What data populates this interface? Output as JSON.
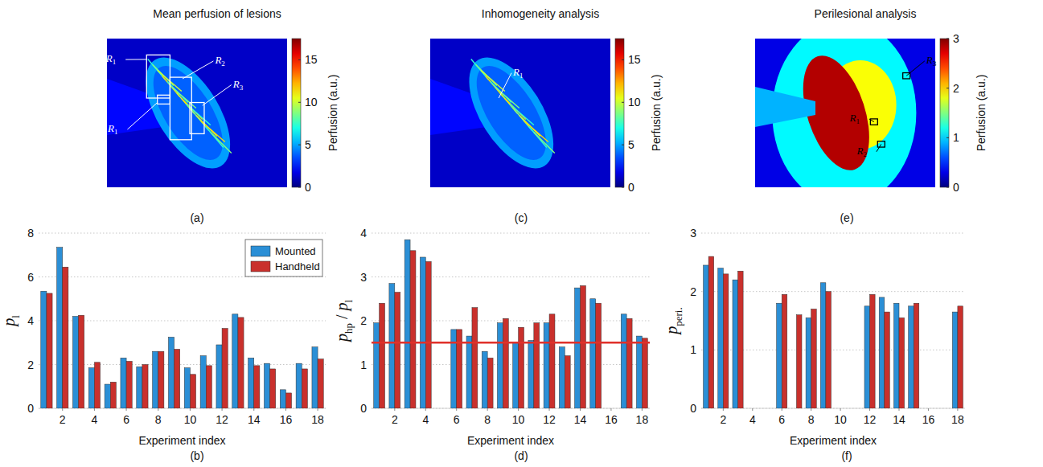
{
  "chart_data": [
    {
      "type": "image",
      "panel": "(a)",
      "title": "Mean perfusion of lesions",
      "colorbar": {
        "label": "Perfusion (a.u.)",
        "range": [
          0,
          17.5
        ],
        "ticks": [
          0,
          5,
          10,
          15
        ]
      },
      "annotations": [
        {
          "text": "R",
          "sub": "1"
        },
        {
          "text": "R",
          "sub": "2"
        },
        {
          "text": "R",
          "sub": "3"
        },
        {
          "text": "R",
          "sub": "1"
        }
      ]
    },
    {
      "type": "bar",
      "panel": "(b)",
      "x": [
        1,
        2,
        3,
        4,
        5,
        6,
        7,
        8,
        9,
        10,
        11,
        12,
        13,
        14,
        15,
        16,
        17,
        18
      ],
      "xlim": [
        0.5,
        18.5
      ],
      "xticks": [
        2,
        4,
        6,
        8,
        10,
        12,
        14,
        16,
        18
      ],
      "ylim": [
        0,
        8
      ],
      "yticks": [
        0,
        2,
        4,
        6,
        8
      ],
      "x_label": "Experiment index",
      "y_label": [
        {
          "text": "p",
          "sub": "l"
        }
      ],
      "grid": true,
      "legend": "upper right",
      "series": [
        {
          "name": "Mounted",
          "color": "#2b8fd6",
          "values": [
            5.35,
            7.35,
            4.2,
            1.85,
            1.1,
            2.3,
            1.9,
            2.6,
            3.25,
            1.85,
            2.4,
            2.9,
            4.3,
            2.3,
            2.05,
            0.85,
            2.05,
            2.8
          ]
        },
        {
          "name": "Handheld",
          "color": "#c9302c",
          "values": [
            5.25,
            6.45,
            4.25,
            2.1,
            1.2,
            2.15,
            2.0,
            2.6,
            2.7,
            1.55,
            1.95,
            3.65,
            4.15,
            1.95,
            1.8,
            0.7,
            1.8,
            2.25
          ]
        }
      ]
    },
    {
      "type": "image",
      "panel": "(c)",
      "title": "Inhomogeneity analysis",
      "colorbar": {
        "label": "Perfusion (a.u.)",
        "range": [
          0,
          17.5
        ],
        "ticks": [
          0,
          5,
          10,
          15
        ]
      },
      "annotations": [
        {
          "text": "R",
          "sub": "1"
        }
      ]
    },
    {
      "type": "bar",
      "panel": "(d)",
      "x": [
        1,
        2,
        3,
        4,
        5,
        6,
        7,
        8,
        9,
        10,
        11,
        12,
        13,
        14,
        15,
        16,
        17,
        18
      ],
      "xlim": [
        0.5,
        18.5
      ],
      "xticks": [
        2,
        4,
        6,
        8,
        10,
        12,
        14,
        16,
        18
      ],
      "ylim": [
        0,
        4
      ],
      "yticks": [
        0,
        1,
        2,
        3,
        4
      ],
      "x_label": "Experiment index",
      "y_label": [
        {
          "text": "p",
          "sub": "hp"
        },
        {
          "text": " / "
        },
        {
          "text": "p",
          "sub": "l"
        }
      ],
      "grid": true,
      "reference_line": {
        "value": 1.5,
        "color": "#e0302a"
      },
      "series": [
        {
          "color": "#2b8fd6",
          "values": [
            1.95,
            2.85,
            3.85,
            3.45,
            null,
            1.8,
            1.65,
            1.3,
            1.95,
            1.5,
            1.55,
            1.95,
            1.4,
            2.75,
            2.5,
            null,
            2.15,
            1.65
          ]
        },
        {
          "color": "#c9302c",
          "values": [
            2.4,
            2.65,
            3.6,
            3.35,
            null,
            1.8,
            2.3,
            1.15,
            2.05,
            1.85,
            1.95,
            2.15,
            1.2,
            2.8,
            2.4,
            null,
            2.05,
            1.6
          ]
        }
      ]
    },
    {
      "type": "image",
      "panel": "(e)",
      "title": "Perilesional analysis",
      "colorbar": {
        "label": "Perfusion (a.u.)",
        "range": [
          0,
          3
        ],
        "ticks": [
          0,
          1,
          2,
          3
        ]
      },
      "annotations": [
        {
          "text": "R",
          "sub": "1"
        },
        {
          "text": "R",
          "sub": "2"
        },
        {
          "text": "R",
          "sub": "3"
        }
      ]
    },
    {
      "type": "bar",
      "panel": "(f)",
      "x": [
        1,
        2,
        3,
        4,
        5,
        6,
        7,
        8,
        9,
        10,
        11,
        12,
        13,
        14,
        15,
        16,
        17,
        18
      ],
      "xlim": [
        0.5,
        18.5
      ],
      "xticks": [
        2,
        4,
        6,
        8,
        10,
        12,
        14,
        16,
        18
      ],
      "ylim": [
        0,
        3
      ],
      "yticks": [
        0,
        1,
        2,
        3
      ],
      "x_label": "Experiment index",
      "y_label": [
        {
          "text": "p",
          "sub": "peri."
        }
      ],
      "grid": true,
      "series": [
        {
          "color": "#2b8fd6",
          "values": [
            2.45,
            2.4,
            2.2,
            0,
            null,
            1.8,
            0,
            1.55,
            2.15,
            0,
            0,
            1.75,
            1.9,
            1.8,
            1.75,
            0,
            0,
            1.65
          ]
        },
        {
          "color": "#c9302c",
          "values": [
            2.6,
            2.3,
            2.35,
            0,
            null,
            1.95,
            1.6,
            1.7,
            2.0,
            0,
            0,
            1.95,
            1.65,
            1.55,
            1.8,
            0,
            0,
            1.75
          ]
        }
      ]
    }
  ]
}
